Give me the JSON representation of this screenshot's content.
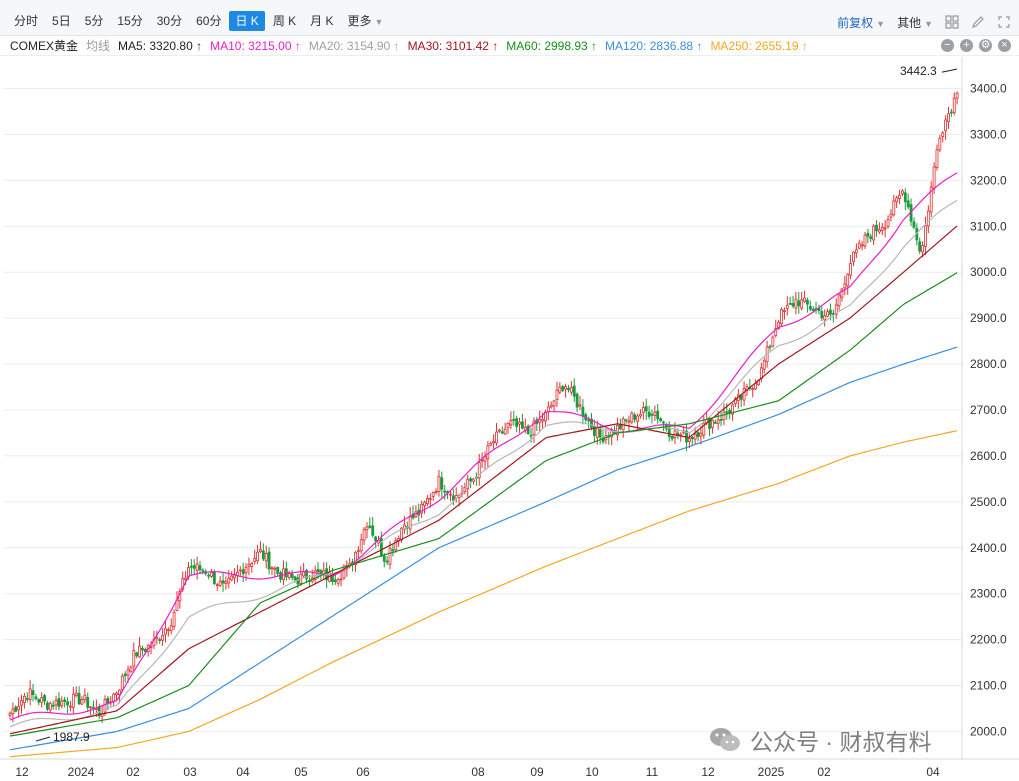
{
  "toolbar": {
    "tabs": [
      "分时",
      "5日",
      "5分",
      "15分",
      "30分",
      "60分",
      "日 K",
      "周 K",
      "月 K",
      "更多"
    ],
    "active_tab": "日 K",
    "adjust_label": "前复权",
    "other_label": "其他"
  },
  "ma_bar": {
    "instrument": "COMEX黄金",
    "avg_label": "均线",
    "items": [
      {
        "label": "MA5: 3320.80 ↑",
        "color": "#1f1f1f"
      },
      {
        "label": "MA10: 3215.00 ↑",
        "color": "#e91ec8"
      },
      {
        "label": "MA20: 3154.90 ↑",
        "color": "#a0a0a0"
      },
      {
        "label": "MA30: 3101.42 ↑",
        "color": "#a3141e"
      },
      {
        "label": "MA60: 2998.93 ↑",
        "color": "#1a8f1a"
      },
      {
        "label": "MA120: 2836.88 ↑",
        "color": "#3a8ee0"
      },
      {
        "label": "MA250: 2655.19 ↑",
        "color": "#f5a623"
      }
    ]
  },
  "watermark": {
    "text": "公众号 · 财叔有料"
  },
  "chart_data": {
    "type": "candlestick",
    "instrument": "COMEX黄金",
    "period": "日 K",
    "ylim": [
      1940,
      3460
    ],
    "y_ticks": [
      2000,
      2100,
      2200,
      2300,
      2400,
      2500,
      2600,
      2700,
      2800,
      2900,
      3000,
      3100,
      3200,
      3300,
      3400
    ],
    "x_ticks": [
      "12",
      "2024",
      "02",
      "03",
      "04",
      "05",
      "06",
      "08",
      "09",
      "10",
      "11",
      "12",
      "2025",
      "02",
      "04"
    ],
    "annotations": [
      {
        "label": "3442.3",
        "type": "high",
        "value": 3442.3
      },
      {
        "label": "1987.9",
        "type": "low",
        "value": 1987.9
      }
    ],
    "grid": true,
    "colors": {
      "up": "#e03030",
      "down": "#1a9a3a"
    },
    "close_anchors": [
      [
        2024.0,
        2040
      ],
      [
        2024.5,
        2085
      ],
      [
        2025.0,
        2060
      ],
      [
        2025.5,
        2065
      ],
      [
        2026.0,
        2072
      ],
      [
        2026.5,
        2040
      ],
      [
        2027.0,
        2090
      ],
      [
        2027.5,
        2170
      ],
      [
        2028.0,
        2190
      ],
      [
        2028.5,
        2240
      ],
      [
        2029.0,
        2360
      ],
      [
        2029.5,
        2350
      ],
      [
        2030.0,
        2310
      ],
      [
        2030.5,
        2355
      ],
      [
        2031.0,
        2390
      ],
      [
        2031.5,
        2345
      ],
      [
        2032.0,
        2330
      ],
      [
        2032.5,
        2345
      ],
      [
        2033.0,
        2335
      ],
      [
        2033.5,
        2355
      ],
      [
        2034.0,
        2460
      ],
      [
        2034.5,
        2375
      ],
      [
        2035.0,
        2450
      ],
      [
        2035.5,
        2480
      ],
      [
        2036.0,
        2545
      ],
      [
        2036.5,
        2510
      ],
      [
        2037.0,
        2555
      ],
      [
        2037.5,
        2630
      ],
      [
        2038.0,
        2670
      ],
      [
        2038.5,
        2650
      ],
      [
        2039.0,
        2690
      ],
      [
        2039.5,
        2760
      ],
      [
        2040.0,
        2700
      ],
      [
        2040.5,
        2640
      ],
      [
        2041.0,
        2660
      ],
      [
        2041.5,
        2690
      ],
      [
        2042.0,
        2700
      ],
      [
        2042.5,
        2650
      ],
      [
        2043.0,
        2640
      ],
      [
        2043.5,
        2670
      ],
      [
        2044.0,
        2690
      ],
      [
        2044.5,
        2730
      ],
      [
        2045.0,
        2780
      ],
      [
        2045.5,
        2900
      ],
      [
        2046.0,
        2940
      ],
      [
        2046.5,
        2920
      ],
      [
        2047.0,
        2900
      ],
      [
        2047.5,
        3020
      ],
      [
        2048.0,
        3080
      ],
      [
        2048.5,
        3110
      ],
      [
        2049.0,
        3180
      ],
      [
        2049.5,
        3040
      ],
      [
        2050.0,
        3300
      ],
      [
        2050.5,
        3390
      ]
    ],
    "ma_anchors": {
      "MA10": [
        [
          2024.0,
          2025
        ],
        [
          2027.0,
          2060
        ],
        [
          2029.0,
          2340
        ],
        [
          2033.0,
          2340
        ],
        [
          2036.0,
          2510
        ],
        [
          2039.0,
          2700
        ],
        [
          2041.0,
          2660
        ],
        [
          2043.0,
          2660
        ],
        [
          2045.5,
          2880
        ],
        [
          2047.5,
          2960
        ],
        [
          2049.0,
          3120
        ],
        [
          2050.5,
          3215
        ]
      ],
      "MA20": [
        [
          2024.0,
          2010
        ],
        [
          2027.0,
          2050
        ],
        [
          2029.0,
          2250
        ],
        [
          2033.0,
          2345
        ],
        [
          2036.0,
          2480
        ],
        [
          2039.0,
          2670
        ],
        [
          2041.0,
          2660
        ],
        [
          2043.0,
          2650
        ],
        [
          2045.5,
          2840
        ],
        [
          2047.5,
          2920
        ],
        [
          2049.0,
          3060
        ],
        [
          2050.5,
          3155
        ]
      ],
      "MA30": [
        [
          2024.0,
          1995
        ],
        [
          2027.0,
          2045
        ],
        [
          2029.0,
          2180
        ],
        [
          2033.0,
          2340
        ],
        [
          2036.0,
          2460
        ],
        [
          2039.0,
          2640
        ],
        [
          2041.0,
          2670
        ],
        [
          2043.0,
          2640
        ],
        [
          2045.5,
          2800
        ],
        [
          2047.5,
          2900
        ],
        [
          2049.0,
          3000
        ],
        [
          2050.5,
          3101
        ]
      ],
      "MA60": [
        [
          2024.0,
          1990
        ],
        [
          2027.0,
          2030
        ],
        [
          2029.0,
          2100
        ],
        [
          2031.0,
          2280
        ],
        [
          2033.0,
          2350
        ],
        [
          2036.0,
          2420
        ],
        [
          2039.0,
          2590
        ],
        [
          2041.0,
          2650
        ],
        [
          2043.0,
          2670
        ],
        [
          2045.5,
          2720
        ],
        [
          2047.5,
          2830
        ],
        [
          2049.0,
          2930
        ],
        [
          2050.5,
          2999
        ]
      ],
      "MA120": [
        [
          2024.0,
          1960
        ],
        [
          2027.0,
          2000
        ],
        [
          2029.0,
          2050
        ],
        [
          2031.0,
          2150
        ],
        [
          2033.0,
          2250
        ],
        [
          2036.0,
          2400
        ],
        [
          2039.0,
          2500
        ],
        [
          2041.0,
          2570
        ],
        [
          2043.0,
          2620
        ],
        [
          2045.5,
          2690
        ],
        [
          2047.5,
          2760
        ],
        [
          2049.0,
          2800
        ],
        [
          2050.5,
          2837
        ]
      ],
      "MA250": [
        [
          2024.0,
          1945
        ],
        [
          2027.0,
          1965
        ],
        [
          2029.0,
          2000
        ],
        [
          2031.0,
          2070
        ],
        [
          2033.0,
          2150
        ],
        [
          2036.0,
          2260
        ],
        [
          2039.0,
          2360
        ],
        [
          2041.0,
          2420
        ],
        [
          2043.0,
          2480
        ],
        [
          2045.5,
          2540
        ],
        [
          2047.5,
          2600
        ],
        [
          2049.0,
          2630
        ],
        [
          2050.5,
          2655
        ]
      ]
    }
  }
}
